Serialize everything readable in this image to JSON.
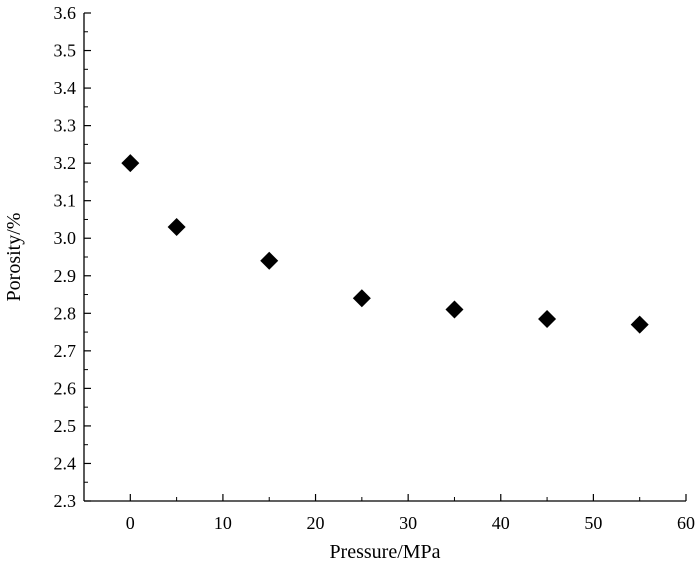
{
  "chart_data": {
    "type": "scatter",
    "title": "",
    "xlabel": "Pressure/MPa",
    "ylabel": "Porosity/%",
    "xlim": [
      -5,
      60
    ],
    "ylim": [
      2.3,
      3.6
    ],
    "xticks": [
      "0",
      "10",
      "20",
      "30",
      "40",
      "50",
      "60"
    ],
    "yticks": [
      "2.3",
      "2.4",
      "2.5",
      "2.6",
      "2.7",
      "2.8",
      "2.9",
      "3.0",
      "3.1",
      "3.2",
      "3.3",
      "3.4",
      "3.5",
      "3.6"
    ],
    "marker": "diamond",
    "grid": false,
    "series": [
      {
        "x": [
          0,
          5,
          15,
          25,
          35,
          45,
          55
        ],
        "y": [
          3.2,
          3.03,
          2.94,
          2.84,
          2.81,
          2.785,
          2.77
        ],
        "color": "#000000"
      }
    ]
  }
}
